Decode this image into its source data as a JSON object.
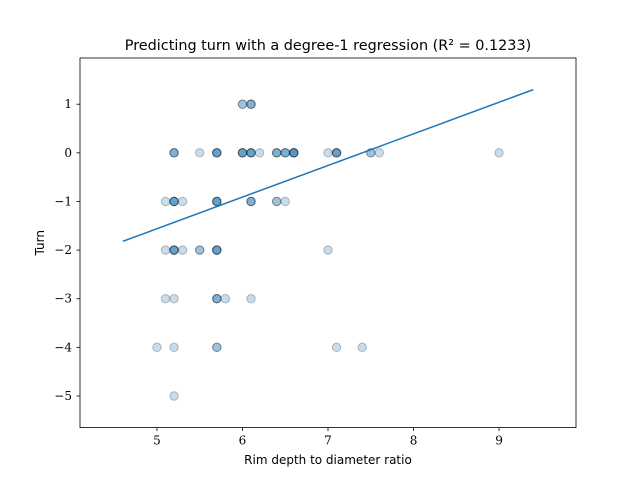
{
  "chart_data": {
    "type": "scatter",
    "title": "Predicting turn with a degree-1 regression (R² = 0.1233)",
    "xlabel": "Rim depth to diameter ratio",
    "ylabel": "Turn",
    "xlim": [
      4.1,
      9.9
    ],
    "ylim": [
      -5.65,
      1.95
    ],
    "xticks": [
      5,
      6,
      7,
      8,
      9
    ],
    "yticks": [
      1,
      0,
      -1,
      -2,
      -3,
      -4,
      -5
    ],
    "ytick_labels": [
      "1",
      "0",
      "−1",
      "−2",
      "−3",
      "−4",
      "−5"
    ],
    "grid": false,
    "legend": "none",
    "colors": {
      "point_fill": "#1f77b4",
      "point_edge": "#000000",
      "line": "#1f77b4"
    },
    "point_alpha": 0.25,
    "points": [
      {
        "x": 5.0,
        "y": -4
      },
      {
        "x": 5.1,
        "y": -1
      },
      {
        "x": 5.1,
        "y": -2
      },
      {
        "x": 5.1,
        "y": -3
      },
      {
        "x": 5.2,
        "y": 0
      },
      {
        "x": 5.2,
        "y": 0
      },
      {
        "x": 5.2,
        "y": 0
      },
      {
        "x": 5.2,
        "y": -1
      },
      {
        "x": 5.2,
        "y": -1
      },
      {
        "x": 5.2,
        "y": -1
      },
      {
        "x": 5.2,
        "y": -1
      },
      {
        "x": 5.2,
        "y": -2
      },
      {
        "x": 5.2,
        "y": -2
      },
      {
        "x": 5.2,
        "y": -2
      },
      {
        "x": 5.2,
        "y": -2
      },
      {
        "x": 5.2,
        "y": -3
      },
      {
        "x": 5.2,
        "y": -4
      },
      {
        "x": 5.2,
        "y": -5
      },
      {
        "x": 5.3,
        "y": -1
      },
      {
        "x": 5.3,
        "y": -2
      },
      {
        "x": 5.5,
        "y": 0
      },
      {
        "x": 5.5,
        "y": -2
      },
      {
        "x": 5.5,
        "y": -2
      },
      {
        "x": 5.7,
        "y": 0
      },
      {
        "x": 5.7,
        "y": 0
      },
      {
        "x": 5.7,
        "y": 0
      },
      {
        "x": 5.7,
        "y": 0
      },
      {
        "x": 5.7,
        "y": -1
      },
      {
        "x": 5.7,
        "y": -1
      },
      {
        "x": 5.7,
        "y": -1
      },
      {
        "x": 5.7,
        "y": -1
      },
      {
        "x": 5.7,
        "y": -2
      },
      {
        "x": 5.7,
        "y": -2
      },
      {
        "x": 5.7,
        "y": -2
      },
      {
        "x": 5.7,
        "y": -2
      },
      {
        "x": 5.7,
        "y": -3
      },
      {
        "x": 5.7,
        "y": -3
      },
      {
        "x": 5.7,
        "y": -3
      },
      {
        "x": 5.7,
        "y": -4
      },
      {
        "x": 5.7,
        "y": -4
      },
      {
        "x": 5.8,
        "y": -3
      },
      {
        "x": 6.0,
        "y": 1
      },
      {
        "x": 6.0,
        "y": 1
      },
      {
        "x": 6.0,
        "y": 0
      },
      {
        "x": 6.0,
        "y": 0
      },
      {
        "x": 6.0,
        "y": 0
      },
      {
        "x": 6.0,
        "y": 0
      },
      {
        "x": 6.1,
        "y": 1
      },
      {
        "x": 6.1,
        "y": 1
      },
      {
        "x": 6.1,
        "y": 1
      },
      {
        "x": 6.1,
        "y": 0
      },
      {
        "x": 6.1,
        "y": 0
      },
      {
        "x": 6.1,
        "y": 0
      },
      {
        "x": 6.1,
        "y": 0
      },
      {
        "x": 6.1,
        "y": -1
      },
      {
        "x": 6.1,
        "y": -1
      },
      {
        "x": 6.1,
        "y": -1
      },
      {
        "x": 6.1,
        "y": -3
      },
      {
        "x": 6.2,
        "y": 0
      },
      {
        "x": 6.4,
        "y": 0
      },
      {
        "x": 6.4,
        "y": 0
      },
      {
        "x": 6.4,
        "y": 0
      },
      {
        "x": 6.4,
        "y": -1
      },
      {
        "x": 6.4,
        "y": -1
      },
      {
        "x": 6.5,
        "y": 0
      },
      {
        "x": 6.5,
        "y": 0
      },
      {
        "x": 6.5,
        "y": 0
      },
      {
        "x": 6.5,
        "y": -1
      },
      {
        "x": 6.6,
        "y": 0
      },
      {
        "x": 6.6,
        "y": 0
      },
      {
        "x": 6.6,
        "y": 0
      },
      {
        "x": 6.6,
        "y": 0
      },
      {
        "x": 6.6,
        "y": 0
      },
      {
        "x": 7.0,
        "y": 0
      },
      {
        "x": 7.0,
        "y": -2
      },
      {
        "x": 7.1,
        "y": 0
      },
      {
        "x": 7.1,
        "y": 0
      },
      {
        "x": 7.1,
        "y": 0
      },
      {
        "x": 7.1,
        "y": 0
      },
      {
        "x": 7.1,
        "y": -4
      },
      {
        "x": 7.4,
        "y": -4
      },
      {
        "x": 7.5,
        "y": 0
      },
      {
        "x": 7.5,
        "y": 0
      },
      {
        "x": 7.6,
        "y": 0
      },
      {
        "x": 9.0,
        "y": 0
      }
    ],
    "regression_line": {
      "x": [
        4.6,
        9.4
      ],
      "y": [
        -1.82,
        1.3
      ]
    }
  }
}
